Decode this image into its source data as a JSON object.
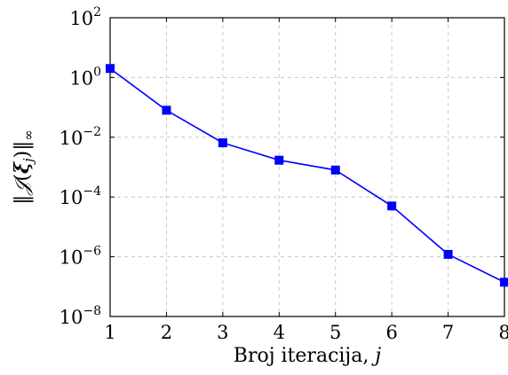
{
  "chart_data": {
    "type": "line",
    "title": "",
    "xlabel": "Broj iteracija, j",
    "xlabel_parts": {
      "text": "Broj iteracija, ",
      "variable": "j"
    },
    "ylabel": "‖𝒥(ξ_j)‖∞",
    "ylabel_parts": {
      "open": "‖",
      "func": "𝒥",
      "paren_open": "(",
      "arg": "ξ",
      "sub": "j",
      "paren_close": ")",
      "close": "‖",
      "norm_sub": "∞"
    },
    "x_ticks": [
      "1",
      "2",
      "3",
      "4",
      "5",
      "6",
      "7",
      "8"
    ],
    "y_scale": "log",
    "y_ticks": [
      {
        "base": "10",
        "exp": "2"
      },
      {
        "base": "10",
        "exp": "0"
      },
      {
        "base": "10",
        "exp": "−2"
      },
      {
        "base": "10",
        "exp": "−4"
      },
      {
        "base": "10",
        "exp": "−6"
      },
      {
        "base": "10",
        "exp": "−8"
      }
    ],
    "xlim": [
      1,
      8
    ],
    "ylim": [
      1e-08,
      100
    ],
    "grid": true,
    "grid_style": "dashed",
    "series": [
      {
        "color": "#0000ff",
        "marker": "square",
        "x": [
          1,
          2,
          3,
          4,
          5,
          6,
          7,
          8
        ],
        "y": [
          2.0,
          0.08,
          0.0065,
          0.0017,
          0.0008,
          5e-05,
          1.2e-06,
          1.4e-07
        ]
      }
    ]
  }
}
